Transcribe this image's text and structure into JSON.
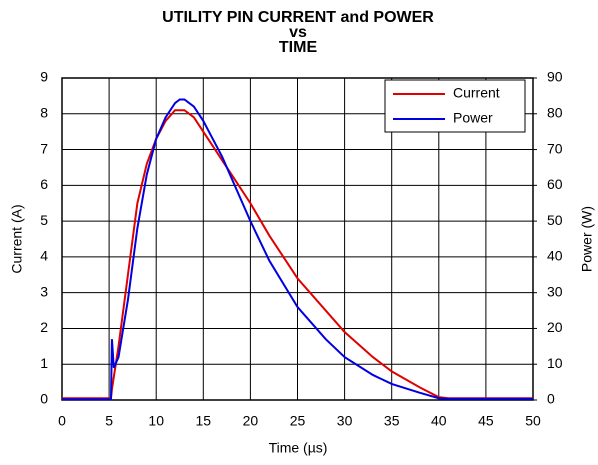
{
  "chart_data": {
    "type": "line",
    "title": [
      "UTILITY PIN CURRENT and POWER",
      "vs",
      "TIME"
    ],
    "xlabel": "Time (µs)",
    "ylabel": "Current (A)",
    "y2label": "Power (W)",
    "xlim": [
      0,
      50
    ],
    "xticks": [
      0,
      5,
      10,
      15,
      20,
      25,
      30,
      35,
      40,
      45,
      50
    ],
    "ylim": [
      0,
      9
    ],
    "yticks": [
      0,
      1,
      2,
      3,
      4,
      5,
      6,
      7,
      8,
      9
    ],
    "y2lim": [
      0,
      90
    ],
    "y2ticks": [
      0,
      10,
      20,
      30,
      40,
      50,
      60,
      70,
      80,
      90
    ],
    "grid": true,
    "legend": "upper right",
    "series": [
      {
        "name": "Current",
        "color": "#e00000",
        "x": [
          0,
          5.2,
          5.3,
          6,
          7,
          8,
          9,
          10,
          11,
          12,
          13,
          14,
          15,
          16,
          17,
          18,
          20,
          22,
          25,
          28,
          30,
          33,
          35,
          38,
          40,
          41,
          50
        ],
        "values": [
          0.05,
          0.05,
          0.3,
          1.5,
          3.5,
          5.5,
          6.6,
          7.3,
          7.8,
          8.1,
          8.1,
          7.9,
          7.5,
          7.1,
          6.7,
          6.3,
          5.5,
          4.6,
          3.4,
          2.5,
          1.9,
          1.2,
          0.8,
          0.35,
          0.08,
          0.05,
          0.05
        ]
      },
      {
        "name": "Power",
        "color": "#0000e0",
        "axis": "y2",
        "x": [
          0,
          5.2,
          5.3,
          5.5,
          6,
          7,
          8,
          9,
          10,
          11,
          12,
          12.5,
          13,
          14,
          15,
          16,
          17,
          18,
          20,
          22,
          25,
          28,
          30,
          33,
          35,
          38,
          40,
          41,
          50
        ],
        "values": [
          0.2,
          0.2,
          17,
          9,
          12,
          28,
          48,
          63,
          73,
          79,
          83,
          84,
          84,
          82,
          78,
          73,
          68,
          62,
          50,
          39,
          26,
          17,
          12,
          7,
          4.5,
          2,
          0.5,
          0.3,
          0.3
        ]
      }
    ]
  }
}
